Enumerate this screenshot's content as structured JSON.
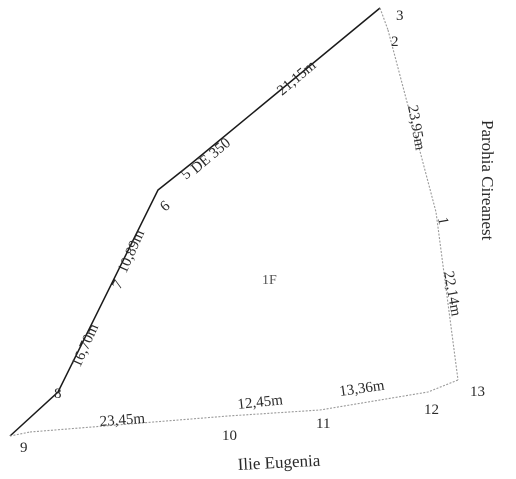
{
  "points": {
    "p3": "3",
    "p2": "2",
    "p5": "5",
    "p6": "6",
    "p7": "7",
    "p8": "8",
    "p9": "9",
    "p10": "10",
    "p11": "11",
    "p12": "12",
    "p13": "13",
    "p1": "1"
  },
  "measurements": {
    "d_3_5": "21,15m",
    "d_5_6": "DE 350",
    "d_2_1": "23,95m",
    "d_1_13": "22,14m",
    "d_6_7": "10,89m",
    "d_7_8": "16,70m",
    "d_9_10": "23,45m",
    "d_10_11": "12,45m",
    "d_11_12": "13,36m"
  },
  "owners": {
    "east": "Parohia Cireanest",
    "south": "Ilie Eugenia"
  },
  "parcel_label": "1F"
}
